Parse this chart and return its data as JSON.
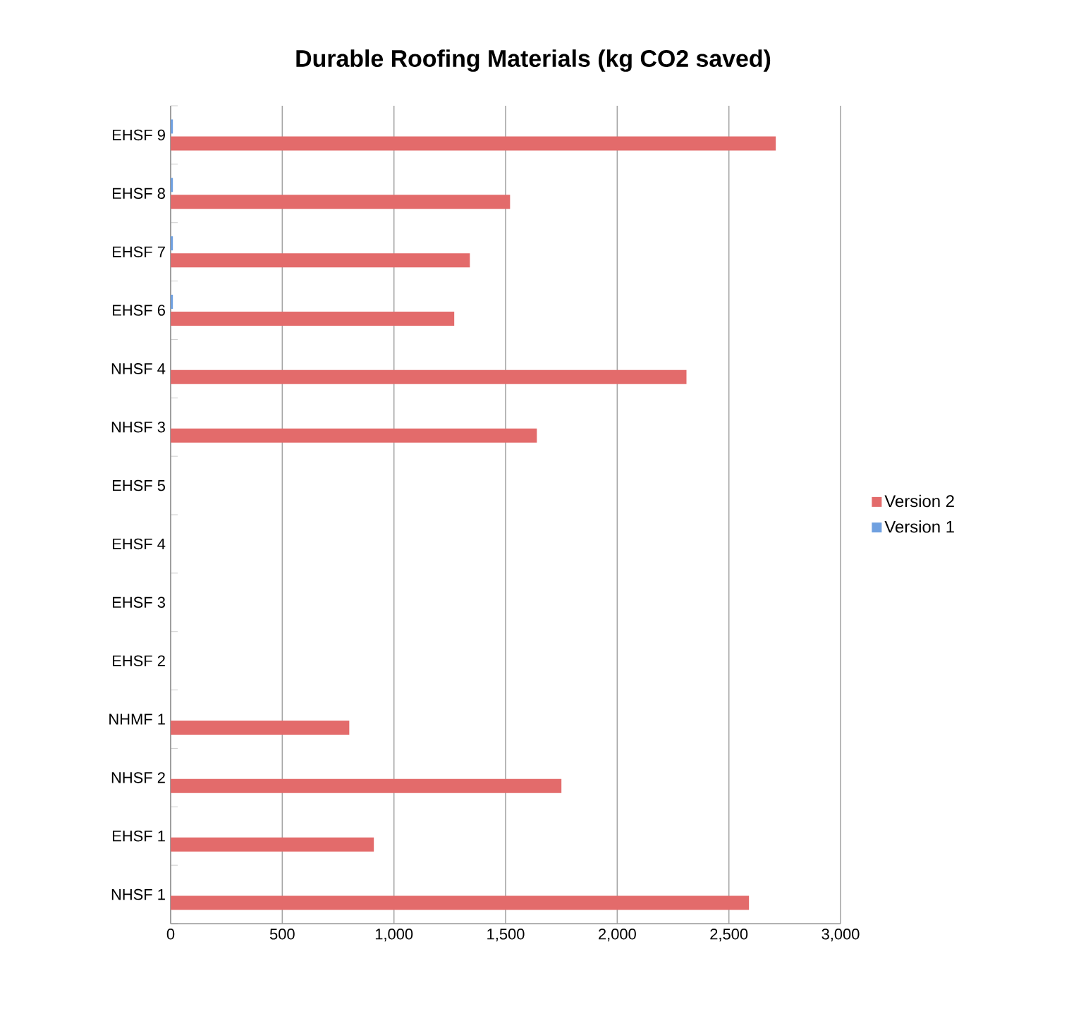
{
  "chart_data": {
    "type": "bar",
    "orientation": "horizontal",
    "title": "Durable Roofing Materials (kg CO2 saved)",
    "categories": [
      "EHSF 9",
      "EHSF 8",
      "EHSF 7",
      "EHSF 6",
      "NHSF 4",
      "NHSF 3",
      "EHSF 5",
      "EHSF 4",
      "EHSF 3",
      "EHSF 2",
      "NHMF 1",
      "NHSF 2",
      "EHSF 1",
      "NHSF 1"
    ],
    "series": [
      {
        "name": "Version 2",
        "color": "#e36b6b",
        "values": [
          2710,
          1520,
          1340,
          1270,
          2310,
          1640,
          null,
          null,
          null,
          null,
          800,
          1750,
          910,
          2590
        ]
      },
      {
        "name": "Version 1",
        "color": "#6fa0e0",
        "values": [
          10,
          10,
          10,
          10,
          null,
          null,
          null,
          null,
          null,
          null,
          null,
          null,
          null,
          null
        ]
      }
    ],
    "xlim": [
      0,
      3000
    ],
    "xticks": [
      {
        "value": 0,
        "label": "0"
      },
      {
        "value": 500,
        "label": "500"
      },
      {
        "value": 1000,
        "label": "1,000"
      },
      {
        "value": 1500,
        "label": "1,500"
      },
      {
        "value": 2000,
        "label": "2,000"
      },
      {
        "value": 2500,
        "label": "2,500"
      },
      {
        "value": 3000,
        "label": "3,000"
      }
    ],
    "grid": "x",
    "legend": "right"
  }
}
